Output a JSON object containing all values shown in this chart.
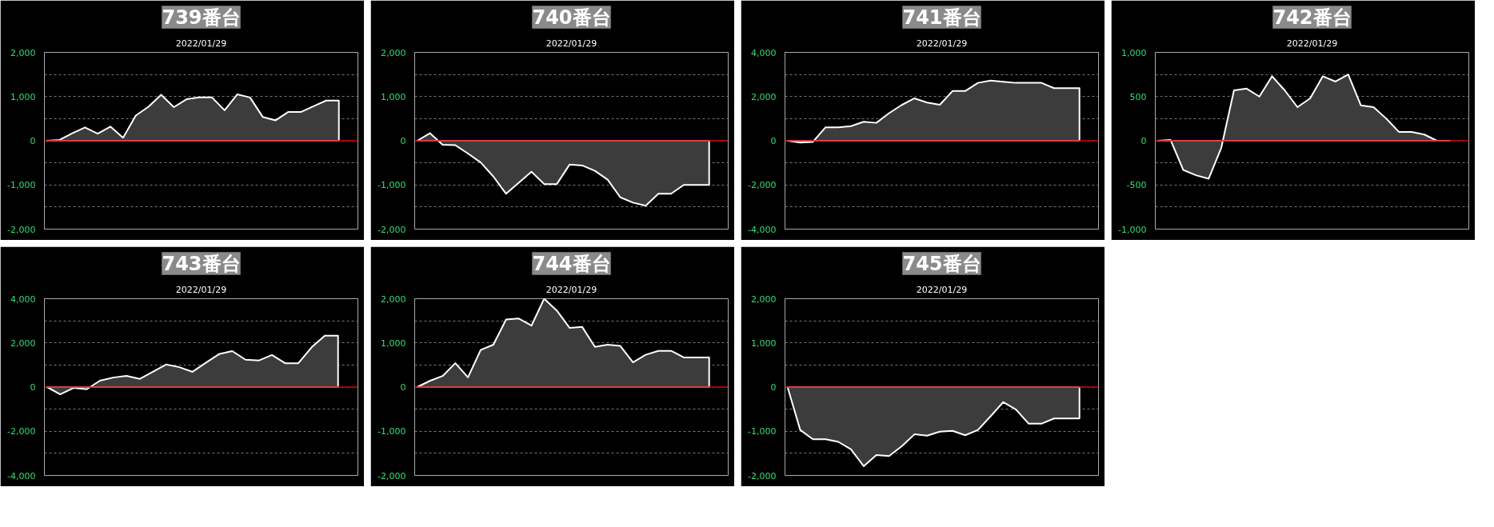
{
  "chart_data": [
    {
      "type": "area",
      "title": "739番台",
      "subtitle": "2022/01/29",
      "categories": [
        null,
        null,
        null,
        null,
        null,
        null,
        null,
        null,
        null,
        null,
        null,
        null,
        null,
        null,
        null,
        null,
        null,
        null,
        null,
        null,
        null,
        null,
        null,
        null
      ],
      "series": [
        {
          "color": "#ffffff",
          "values": [
            0,
            20,
            170,
            300,
            160,
            320,
            70,
            570,
            770,
            1040,
            760,
            940,
            980,
            980,
            690,
            1050,
            980,
            540,
            460,
            650,
            650,
            780,
            910,
            910
          ]
        }
      ],
      "ylim": [
        -2000,
        2000
      ],
      "yticks": [
        {
          "value": 2000,
          "label": "2,000"
        },
        {
          "value": 1500,
          "label": null
        },
        {
          "value": 1000,
          "label": "1,000"
        },
        {
          "value": 500,
          "label": null
        },
        0,
        {
          "value": -500,
          "label": null
        },
        {
          "value": -1000,
          "label": "-1,000"
        },
        {
          "value": -1500,
          "label": null
        },
        {
          "value": -2000,
          "label": "-2,000"
        }
      ],
      "grid": "y",
      "tick_labels": "y",
      "ref_lines": [
        {
          "axis": "y",
          "value": 0,
          "color": "#cc0000"
        }
      ]
    },
    {
      "type": "area",
      "title": "740番台",
      "subtitle": "2022/01/29",
      "categories": [
        null,
        null,
        null,
        null,
        null,
        null,
        null,
        null,
        null,
        null,
        null,
        null,
        null,
        null,
        null,
        null,
        null,
        null,
        null,
        null,
        null,
        null,
        null,
        null
      ],
      "series": [
        {
          "color": "#ffffff",
          "values": [
            0,
            170,
            -90,
            -100,
            -290,
            -490,
            -810,
            -1200,
            -950,
            -700,
            -980,
            -980,
            -540,
            -560,
            -680,
            -880,
            -1280,
            -1400,
            -1470,
            -1200,
            -1200,
            -1000,
            -1000,
            -1000
          ]
        }
      ],
      "ylim": [
        -2000,
        2000
      ],
      "yticks": [
        {
          "value": 2000,
          "label": "2,000"
        },
        {
          "value": 1500,
          "label": null
        },
        {
          "value": 1000,
          "label": "1,000"
        },
        {
          "value": 500,
          "label": null
        },
        0,
        {
          "value": -500,
          "label": null
        },
        {
          "value": -1000,
          "label": "-1,000"
        },
        {
          "value": -1500,
          "label": null
        },
        {
          "value": -2000,
          "label": "-2,000"
        }
      ],
      "grid": "y",
      "tick_labels": "y",
      "ref_lines": [
        {
          "axis": "y",
          "value": 0,
          "color": "#cc0000"
        }
      ]
    },
    {
      "type": "area",
      "title": "741番台",
      "subtitle": "2022/01/29",
      "categories": [
        null,
        null,
        null,
        null,
        null,
        null,
        null,
        null,
        null,
        null,
        null,
        null,
        null,
        null,
        null,
        null,
        null,
        null,
        null,
        null,
        null,
        null,
        null,
        null
      ],
      "series": [
        {
          "color": "#ffffff",
          "values": [
            0,
            -80,
            -50,
            610,
            610,
            660,
            860,
            810,
            1250,
            1620,
            1920,
            1730,
            1630,
            2250,
            2250,
            2620,
            2720,
            2670,
            2620,
            2620,
            2620,
            2380,
            2380,
            2380
          ]
        }
      ],
      "ylim": [
        -4000,
        4000
      ],
      "yticks": [
        {
          "value": 4000,
          "label": "4,000"
        },
        {
          "value": 3000,
          "label": null
        },
        {
          "value": 2000,
          "label": "2,000"
        },
        {
          "value": 1000,
          "label": null
        },
        0,
        {
          "value": -1000,
          "label": null
        },
        {
          "value": -2000,
          "label": "-2,000"
        },
        {
          "value": -3000,
          "label": null
        },
        {
          "value": -4000,
          "label": "-4,000"
        }
      ],
      "grid": "y",
      "tick_labels": "y",
      "ref_lines": [
        {
          "axis": "y",
          "value": 0,
          "color": "#cc0000"
        }
      ]
    },
    {
      "type": "area",
      "title": "742番台",
      "subtitle": "2022/01/29",
      "categories": [
        null,
        null,
        null,
        null,
        null,
        null,
        null,
        null,
        null,
        null,
        null,
        null,
        null,
        null,
        null,
        null,
        null,
        null,
        null,
        null,
        null,
        null,
        null,
        null
      ],
      "series": [
        {
          "color": "#ffffff",
          "values": [
            0,
            10,
            -330,
            -390,
            -430,
            -80,
            570,
            590,
            500,
            730,
            570,
            380,
            480,
            730,
            670,
            750,
            400,
            380,
            250,
            100,
            100,
            70,
            0,
            0
          ]
        }
      ],
      "ylim": [
        -1000,
        1000
      ],
      "yticks": [
        {
          "value": 1000,
          "label": "1,000"
        },
        {
          "value": 750,
          "label": null
        },
        {
          "value": 500,
          "label": "500"
        },
        {
          "value": 250,
          "label": null
        },
        0,
        {
          "value": -250,
          "label": null
        },
        {
          "value": -500,
          "label": "-500"
        },
        {
          "value": -750,
          "label": null
        },
        {
          "value": -1000,
          "label": "-1,000"
        }
      ],
      "grid": "y",
      "tick_labels": "y",
      "ref_lines": [
        {
          "axis": "y",
          "value": 0,
          "color": "#cc0000"
        }
      ]
    },
    {
      "type": "area",
      "title": "743番台",
      "subtitle": "2022/01/29",
      "categories": [
        null,
        null,
        null,
        null,
        null,
        null,
        null,
        null,
        null,
        null,
        null,
        null,
        null,
        null,
        null,
        null,
        null,
        null,
        null,
        null,
        null,
        null,
        null
      ],
      "series": [
        {
          "color": "#ffffff",
          "values": [
            0,
            -330,
            -40,
            -100,
            290,
            430,
            510,
            370,
            690,
            1020,
            900,
            690,
            1100,
            1490,
            1630,
            1240,
            1200,
            1450,
            1080,
            1080,
            1800,
            2330,
            2330
          ]
        }
      ],
      "ylim": [
        -4000,
        4000
      ],
      "yticks": [
        {
          "value": 4000,
          "label": "4,000"
        },
        {
          "value": 3000,
          "label": null
        },
        {
          "value": 2000,
          "label": "2,000"
        },
        {
          "value": 1000,
          "label": null
        },
        0,
        {
          "value": -1000,
          "label": null
        },
        {
          "value": -2000,
          "label": "-2,000"
        },
        {
          "value": -3000,
          "label": null
        },
        {
          "value": -4000,
          "label": "-4,000"
        }
      ],
      "grid": "y",
      "tick_labels": "y",
      "ref_lines": [
        {
          "axis": "y",
          "value": 0,
          "color": "#cc0000"
        }
      ]
    },
    {
      "type": "area",
      "title": "744番台",
      "subtitle": "2022/01/29",
      "categories": [
        null,
        null,
        null,
        null,
        null,
        null,
        null,
        null,
        null,
        null,
        null,
        null,
        null,
        null,
        null,
        null,
        null,
        null,
        null,
        null,
        null,
        null,
        null,
        null
      ],
      "series": [
        {
          "color": "#ffffff",
          "values": [
            0,
            140,
            250,
            540,
            220,
            840,
            960,
            1530,
            1550,
            1390,
            2000,
            1730,
            1340,
            1360,
            910,
            960,
            930,
            560,
            730,
            820,
            820,
            670,
            670,
            670
          ]
        }
      ],
      "ylim": [
        -2000,
        2000
      ],
      "yticks": [
        {
          "value": 2000,
          "label": "2,000"
        },
        {
          "value": 1500,
          "label": null
        },
        {
          "value": 1000,
          "label": "1,000"
        },
        {
          "value": 500,
          "label": null
        },
        0,
        {
          "value": -500,
          "label": null
        },
        {
          "value": -1000,
          "label": "-1,000"
        },
        {
          "value": -1500,
          "label": null
        },
        {
          "value": -2000,
          "label": "-2,000"
        }
      ],
      "grid": "y",
      "tick_labels": "y",
      "ref_lines": [
        {
          "axis": "y",
          "value": 0,
          "color": "#cc0000"
        }
      ]
    },
    {
      "type": "area",
      "title": "745番台",
      "subtitle": "2022/01/29",
      "categories": [
        null,
        null,
        null,
        null,
        null,
        null,
        null,
        null,
        null,
        null,
        null,
        null,
        null,
        null,
        null,
        null,
        null,
        null,
        null,
        null,
        null,
        null,
        null,
        null
      ],
      "series": [
        {
          "color": "#ffffff",
          "values": [
            0,
            -970,
            -1180,
            -1180,
            -1240,
            -1410,
            -1790,
            -1540,
            -1560,
            -1340,
            -1070,
            -1100,
            -1010,
            -990,
            -1090,
            -970,
            -660,
            -340,
            -510,
            -830,
            -830,
            -710,
            -710,
            -710
          ]
        }
      ],
      "ylim": [
        -2000,
        2000
      ],
      "yticks": [
        {
          "value": 2000,
          "label": "2,000"
        },
        {
          "value": 1500,
          "label": null
        },
        {
          "value": 1000,
          "label": "1,000"
        },
        {
          "value": 500,
          "label": null
        },
        0,
        {
          "value": -500,
          "label": null
        },
        {
          "value": -1000,
          "label": "-1,000"
        },
        {
          "value": -1500,
          "label": null
        },
        {
          "value": -2000,
          "label": "-2,000"
        }
      ],
      "grid": "y",
      "tick_labels": "y",
      "ref_lines": [
        {
          "axis": "y",
          "value": 0,
          "color": "#cc0000"
        }
      ]
    }
  ]
}
